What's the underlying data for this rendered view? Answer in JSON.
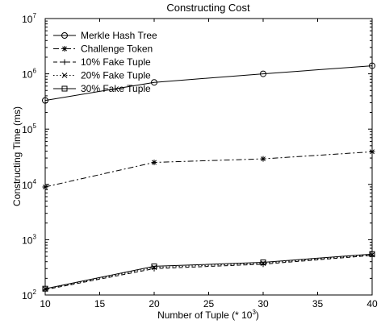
{
  "chart_data": {
    "type": "line",
    "title": "Constructing Cost",
    "xlabel": "Number of Tuple (* 10",
    "xlabel_sup": "3",
    "xlabel_close": ")",
    "ylabel": "Constructing Time (ms)",
    "xlim": [
      10,
      40
    ],
    "ylim_log10": [
      2,
      7
    ],
    "yscale": "log",
    "grid": false,
    "legend_placement": "top-left",
    "x_ticks": [
      "10",
      "15",
      "20",
      "25",
      "30",
      "35",
      "40"
    ],
    "y_ticks": [
      {
        "base": "10",
        "exp": "2"
      },
      {
        "base": "10",
        "exp": "3"
      },
      {
        "base": "10",
        "exp": "4"
      },
      {
        "base": "10",
        "exp": "5"
      },
      {
        "base": "10",
        "exp": "6"
      },
      {
        "base": "10",
        "exp": "7"
      }
    ],
    "x": [
      10,
      20,
      30,
      40
    ],
    "series": [
      {
        "name": "Merkle Hash Tree",
        "values": [
          330000,
          700000,
          1000000,
          1400000
        ],
        "marker": "circle",
        "dash": "solid"
      },
      {
        "name": "Challenge Token",
        "values": [
          9000,
          25000,
          29000,
          39000
        ],
        "marker": "star",
        "dash": "dashdot"
      },
      {
        "name": "10% Fake Tuple",
        "values": [
          125,
          300,
          360,
          520
        ],
        "marker": "plus",
        "dash": "dashed"
      },
      {
        "name": "20% Fake Tuple",
        "values": [
          128,
          315,
          375,
          535
        ],
        "marker": "x",
        "dash": "dotted"
      },
      {
        "name": "30% Fake Tuple",
        "values": [
          130,
          330,
          390,
          550
        ],
        "marker": "square",
        "dash": "solid"
      }
    ]
  }
}
